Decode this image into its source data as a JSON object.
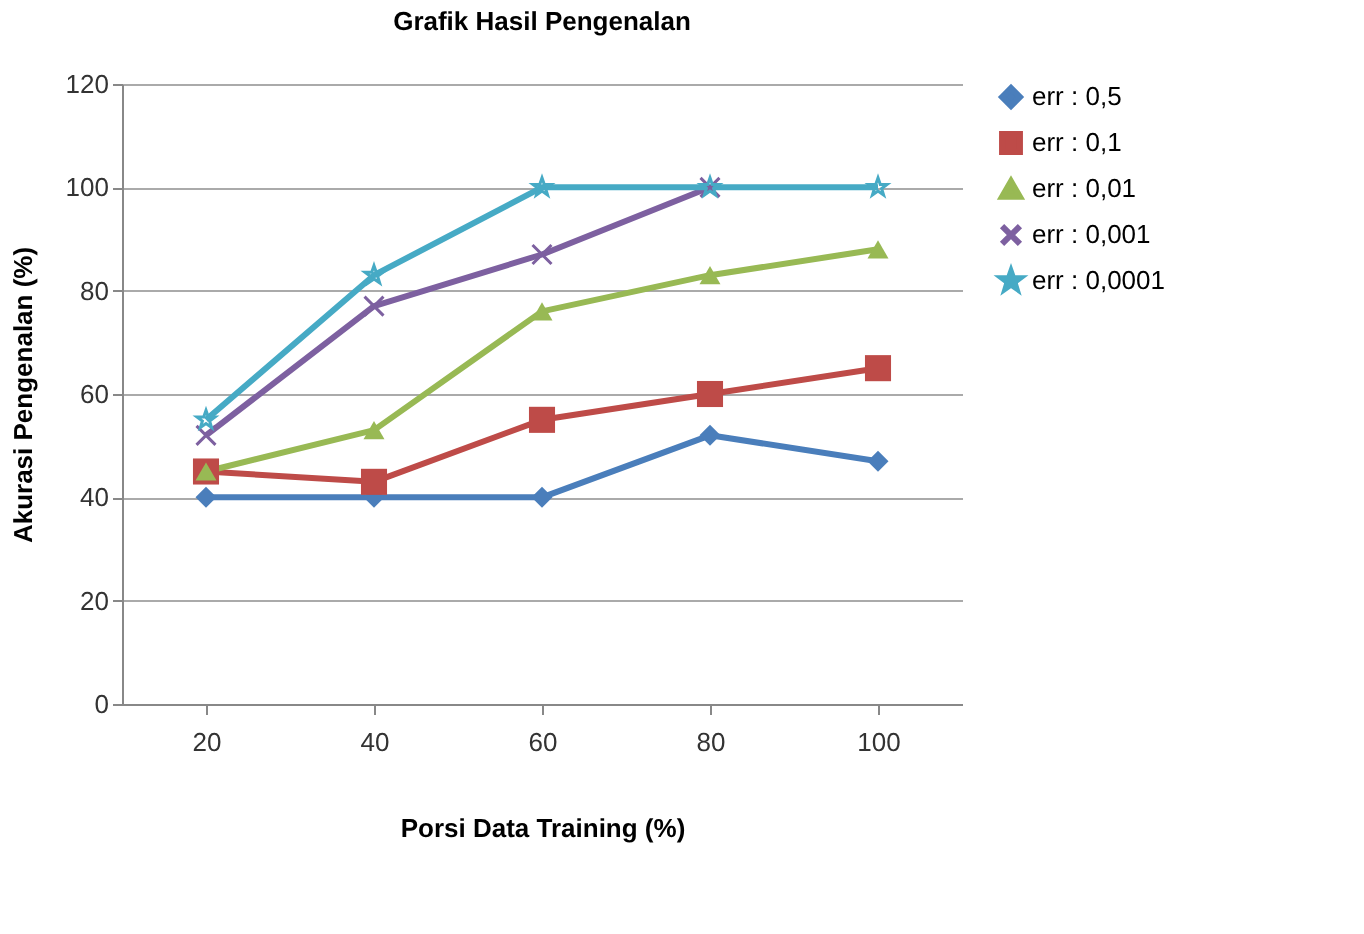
{
  "chart_data": {
    "type": "line",
    "title": "Grafik Hasil Pengenalan",
    "xlabel": "Porsi Data Training (%)",
    "ylabel": "Akurasi  Pengenalan (%)",
    "categories": [
      "20",
      "40",
      "60",
      "80",
      "100"
    ],
    "series": [
      {
        "name": "err : 0,5",
        "color": "#4a7ebb",
        "marker": "diamond",
        "values": [
          40,
          40,
          40,
          52,
          47
        ]
      },
      {
        "name": "err : 0,1",
        "color": "#be4b48",
        "marker": "square",
        "values": [
          45,
          43,
          55,
          60,
          65
        ]
      },
      {
        "name": "err : 0,01",
        "color": "#98b954",
        "marker": "triangle",
        "values": [
          45,
          53,
          76,
          83,
          88
        ]
      },
      {
        "name": "err : 0,001",
        "color": "#7d60a0",
        "marker": "cross",
        "values": [
          52,
          77,
          87,
          100,
          null
        ]
      },
      {
        "name": "err : 0,0001",
        "color": "#46aac5",
        "marker": "star",
        "values": [
          55,
          83,
          100,
          100,
          100
        ]
      }
    ],
    "ylim": [
      0,
      120
    ],
    "yticks": [
      0,
      20,
      40,
      60,
      80,
      100,
      120
    ],
    "grid": "y",
    "legend": "right"
  }
}
